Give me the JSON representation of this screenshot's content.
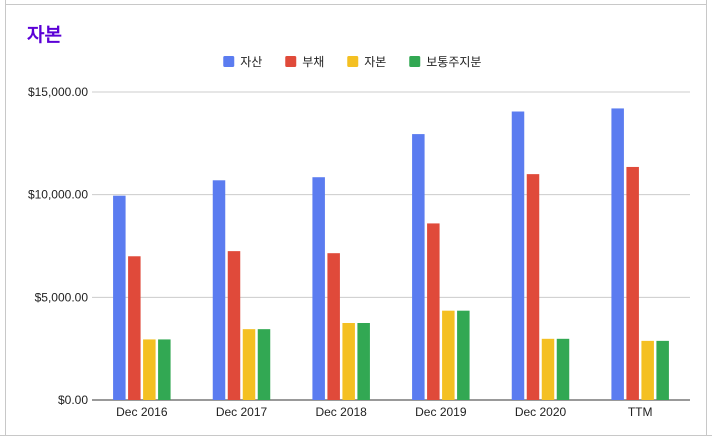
{
  "chart_data": {
    "type": "bar",
    "title": "자본",
    "categories": [
      "Dec 2016",
      "Dec 2017",
      "Dec 2018",
      "Dec 2019",
      "Dec 2020",
      "TTM"
    ],
    "series": [
      {
        "name": "자산",
        "color": "#5b7cf0",
        "values": [
          9950,
          10700,
          10850,
          12950,
          14050,
          14200
        ]
      },
      {
        "name": "부채",
        "color": "#e04a3a",
        "values": [
          7000,
          7250,
          7150,
          8600,
          11000,
          11350
        ]
      },
      {
        "name": "자본",
        "color": "#f4c022",
        "values": [
          2950,
          3450,
          3750,
          4350,
          2980,
          2880
        ]
      },
      {
        "name": "보통주지분",
        "color": "#32a853",
        "values": [
          2950,
          3450,
          3750,
          4350,
          2980,
          2880
        ]
      }
    ],
    "ylim": [
      0,
      15000
    ],
    "yticks": [
      0,
      5000,
      10000,
      15000
    ],
    "ytick_labels": [
      "$0.00",
      "$5,000.00",
      "$10,000.00",
      "$15,000.00"
    ],
    "grid": true,
    "legend": "top-center",
    "xlabel": "",
    "ylabel": ""
  }
}
